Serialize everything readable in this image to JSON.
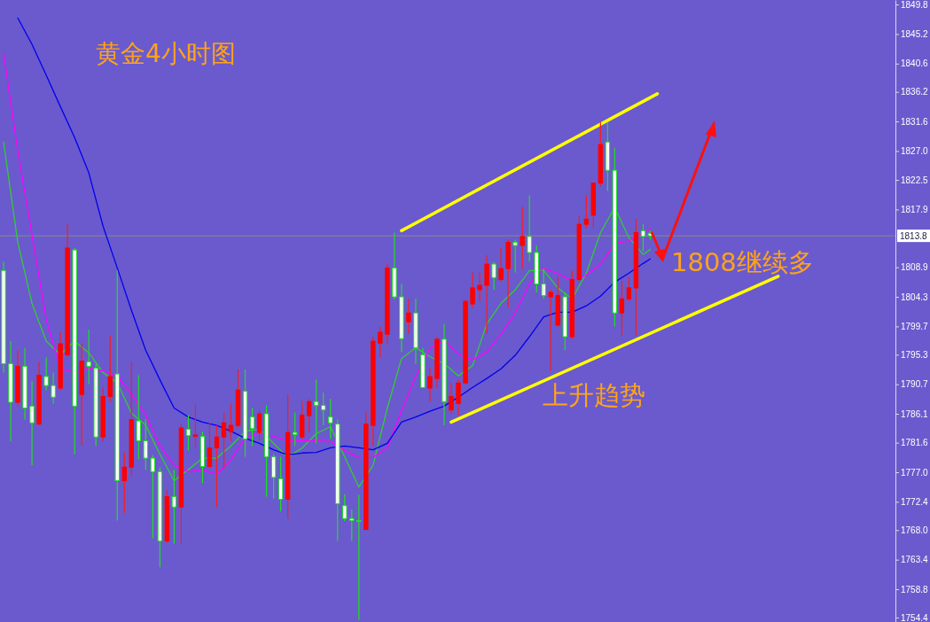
{
  "chart_data": {
    "type": "candlestick",
    "title": "黄金4小时图",
    "annotations": [
      "1808继续多",
      "上升趋势"
    ],
    "categories": [
      null,
      null,
      null,
      null,
      null,
      null,
      null,
      null,
      null,
      null,
      null,
      null,
      null,
      null,
      null,
      null,
      null,
      null,
      null,
      null,
      null,
      null,
      null,
      null,
      null,
      null,
      null,
      null,
      null,
      null,
      null,
      null,
      null,
      null,
      null,
      null,
      null,
      null,
      null,
      null,
      null,
      null,
      null,
      null,
      null,
      null,
      null,
      null,
      null,
      null,
      null,
      null,
      null,
      null,
      null,
      null,
      null,
      null,
      null,
      null,
      null,
      null,
      null,
      null,
      null,
      null,
      null,
      null,
      null,
      null,
      null,
      null,
      null,
      null,
      null,
      null,
      null,
      null,
      null,
      null,
      null,
      null,
      null,
      null,
      null,
      null,
      null,
      null,
      null,
      null,
      null,
      null,
      null,
      null,
      null,
      null,
      null,
      null,
      null,
      null,
      null,
      null,
      null,
      null,
      null,
      null,
      null,
      null,
      null,
      null,
      null,
      null,
      null,
      null,
      null,
      null,
      null,
      null,
      null,
      null,
      null,
      null,
      null,
      null,
      null,
      null
    ],
    "ohlc": [
      [
        1808.4,
        1809.8,
        1792.5,
        1793.9
      ],
      [
        1793.9,
        1797.4,
        1781.8,
        1787.9
      ],
      [
        1787.9,
        1796.0,
        1787.3,
        1793.5
      ],
      [
        1793.5,
        1796.3,
        1785.2,
        1787.0
      ],
      [
        1787.3,
        1791.2,
        1778.1,
        1784.7
      ],
      [
        1784.5,
        1794.2,
        1784.3,
        1792.1
      ],
      [
        1791.9,
        1794.9,
        1789.8,
        1790.5
      ],
      [
        1790.5,
        1792.5,
        1787.7,
        1788.7
      ],
      [
        1790.1,
        1798.8,
        1789.8,
        1797.0
      ],
      [
        1795.3,
        1815.6,
        1795.0,
        1811.9
      ],
      [
        1811.6,
        1811.9,
        1779.8,
        1787.3
      ],
      [
        1789.1,
        1797.0,
        1781.2,
        1794.3
      ],
      [
        1794.2,
        1799.2,
        1790.7,
        1793.5
      ],
      [
        1793.2,
        1793.9,
        1781.1,
        1782.5
      ],
      [
        1782.5,
        1790.2,
        1781.8,
        1788.8
      ],
      [
        1788.8,
        1798.3,
        1788.0,
        1791.9
      ],
      [
        1792.3,
        1808.4,
        1769.5,
        1775.7
      ],
      [
        1775.7,
        1780.1,
        1770.7,
        1777.8
      ],
      [
        1777.8,
        1794.2,
        1776.4,
        1785.2
      ],
      [
        1785.0,
        1792.1,
        1779.0,
        1781.9
      ],
      [
        1781.9,
        1785.2,
        1777.4,
        1779.2
      ],
      [
        1779.2,
        1779.7,
        1766.7,
        1777.1
      ],
      [
        1777.1,
        1777.8,
        1762.2,
        1766.3
      ],
      [
        1766.3,
        1774.2,
        1766.0,
        1773.2
      ],
      [
        1773.2,
        1777.4,
        1765.9,
        1771.6
      ],
      [
        1771.6,
        1784.5,
        1765.9,
        1783.9
      ],
      [
        1783.7,
        1785.9,
        1780.4,
        1782.7
      ],
      [
        1782.6,
        1787.6,
        1780.8,
        1782.8
      ],
      [
        1782.6,
        1783.3,
        1775.3,
        1777.9
      ],
      [
        1777.9,
        1784.7,
        1777.6,
        1780.8
      ],
      [
        1780.8,
        1784.3,
        1771.6,
        1782.5
      ],
      [
        1782.5,
        1786.3,
        1777.6,
        1784.7
      ],
      [
        1783.3,
        1787.7,
        1781.8,
        1784.3
      ],
      [
        1784.3,
        1793.0,
        1784.0,
        1789.8
      ],
      [
        1789.6,
        1793.0,
        1779.4,
        1782.2
      ],
      [
        1785.6,
        1787.0,
        1781.1,
        1783.8
      ],
      [
        1783.2,
        1786.6,
        1781.9,
        1786.1
      ],
      [
        1786.1,
        1787.4,
        1773.2,
        1779.4
      ],
      [
        1779.4,
        1779.8,
        1772.9,
        1776.2
      ],
      [
        1776.0,
        1779.4,
        1770.9,
        1772.8
      ],
      [
        1772.8,
        1789.1,
        1769.8,
        1783.2
      ],
      [
        1783.2,
        1786.3,
        1781.1,
        1782.9
      ],
      [
        1782.5,
        1788.1,
        1782.2,
        1785.9
      ],
      [
        1785.8,
        1788.4,
        1783.2,
        1788.0
      ],
      [
        1788.0,
        1791.4,
        1781.5,
        1787.4
      ],
      [
        1787.4,
        1789.4,
        1784.3,
        1786.7
      ],
      [
        1785.6,
        1788.4,
        1782.2,
        1784.7
      ],
      [
        1784.5,
        1785.2,
        1766.3,
        1772.1
      ],
      [
        1771.8,
        1773.6,
        1769.4,
        1769.8
      ],
      [
        1769.8,
        1771.2,
        1766.3,
        1769.5
      ],
      [
        1769.5,
        1773.5,
        1754.0,
        1769.4
      ],
      [
        1768.1,
        1786.3,
        1768.1,
        1784.5
      ],
      [
        1784.3,
        1798.1,
        1781.1,
        1797.4
      ],
      [
        1797.1,
        1799.7,
        1794.9,
        1798.8
      ],
      [
        1798.5,
        1809.5,
        1797.1,
        1808.8
      ],
      [
        1808.8,
        1814.3,
        1803.9,
        1804.3
      ],
      [
        1804.3,
        1806.3,
        1795.7,
        1797.8
      ],
      [
        1800.4,
        1804.0,
        1798.5,
        1801.8
      ],
      [
        1801.8,
        1804.0,
        1793.9,
        1796.4
      ],
      [
        1795.3,
        1796.3,
        1790.1,
        1790.2
      ],
      [
        1790.1,
        1793.2,
        1788.0,
        1791.9
      ],
      [
        1791.6,
        1798.1,
        1790.2,
        1797.7
      ],
      [
        1797.7,
        1800.1,
        1784.3,
        1788.0
      ],
      [
        1786.7,
        1790.9,
        1786.1,
        1788.8
      ],
      [
        1787.7,
        1791.4,
        1785.9,
        1790.9
      ],
      [
        1790.9,
        1803.9,
        1790.7,
        1803.6
      ],
      [
        1803.2,
        1808.1,
        1802.6,
        1805.7
      ],
      [
        1805.4,
        1808.1,
        1803.6,
        1806.1
      ],
      [
        1806.1,
        1810.8,
        1798.5,
        1809.4
      ],
      [
        1809.4,
        1809.8,
        1805.4,
        1807.3
      ],
      [
        1807.0,
        1811.9,
        1806.7,
        1808.7
      ],
      [
        1808.7,
        1813.2,
        1802.6,
        1812.8
      ],
      [
        1812.8,
        1813.2,
        1808.1,
        1812.3
      ],
      [
        1812.3,
        1818.3,
        1808.7,
        1813.7
      ],
      [
        1813.7,
        1820.1,
        1809.8,
        1811.2
      ],
      [
        1811.2,
        1812.3,
        1805.0,
        1806.3
      ],
      [
        1806.3,
        1808.7,
        1804.0,
        1804.5
      ],
      [
        1804.3,
        1805.4,
        1792.8,
        1805.0
      ],
      [
        1799.9,
        1807.4,
        1799.7,
        1804.5
      ],
      [
        1804.3,
        1805.0,
        1796.0,
        1798.1
      ],
      [
        1798.1,
        1808.4,
        1797.8,
        1807.0
      ],
      [
        1807.0,
        1817.0,
        1806.7,
        1815.6
      ],
      [
        1815.6,
        1820.1,
        1815.0,
        1816.4
      ],
      [
        1817.0,
        1822.0,
        1815.0,
        1822.0
      ],
      [
        1822.0,
        1831.5,
        1821.5,
        1828.0
      ],
      [
        1828.4,
        1831.5,
        1820.8,
        1824.0
      ],
      [
        1824.0,
        1827.5,
        1799.7,
        1801.8
      ],
      [
        1801.8,
        1806.8,
        1798.3,
        1804.0
      ],
      [
        1804.0,
        1807.4,
        1803.6,
        1805.7
      ],
      [
        1805.7,
        1816.4,
        1798.3,
        1814.3
      ],
      [
        1814.6,
        1815.6,
        1811.4,
        1813.7
      ],
      [
        1814.2,
        1814.6,
        1813.2,
        1813.8
      ],
      null,
      null,
      null,
      null,
      null,
      null,
      null,
      null,
      null,
      null,
      null,
      null,
      null,
      null,
      null,
      null,
      null,
      null,
      null,
      null,
      null,
      null,
      null,
      null,
      null,
      null,
      null,
      null,
      null,
      null,
      null,
      null,
      null,
      null
    ],
    "series": [
      {
        "type": "line",
        "color": "#33cc33",
        "values": [
          1828.4,
          null,
          1812.8,
          null,
          1803.3,
          null,
          1797.4,
          null,
          1795.3,
          null,
          1797.4,
          null,
          1795.6,
          null,
          1792.5,
          null,
          1790.9,
          null,
          1786.2,
          null,
          1784.3,
          null,
          1779.8,
          null,
          1775.7,
          null,
          1777.4,
          null,
          1779.2,
          null,
          1779.2,
          null,
          1781.1,
          null,
          1783.4,
          null,
          1783.7,
          null,
          1781.5,
          null,
          1779.3,
          null,
          1780.8,
          null,
          1783.0,
          null,
          1784.1,
          null,
          1779.4,
          null,
          1774.7,
          null,
          1778.1,
          null,
          1787.0,
          null,
          1794.7,
          null,
          1796.4,
          null,
          1795.0,
          null,
          1793.9,
          null,
          1792.0,
          null,
          1793.6,
          null,
          1800.1,
          null,
          1803.3,
          null,
          1805.4,
          null,
          1808.4,
          null,
          1808.4,
          null,
          1805.7,
          null,
          1804.0,
          null,
          1808.0,
          null,
          1814.3,
          null,
          1818.2,
          null,
          1813.5,
          null,
          1810.9,
          1811.7,
          null,
          null,
          null,
          null,
          null,
          null,
          null,
          null,
          null,
          null,
          null,
          null,
          null,
          null,
          null,
          null,
          null,
          null,
          null,
          null,
          null,
          null,
          null,
          null,
          null,
          null,
          null,
          null,
          null,
          null,
          null,
          null,
          null,
          null
        ]
      },
      {
        "type": "line",
        "color": "#ff00ff",
        "values": [
          1842.2,
          null,
          1827.0,
          null,
          1813.9,
          null,
          1800.8,
          null,
          1793.2,
          null,
          1792.5,
          null,
          1793.2,
          null,
          1792.8,
          null,
          1792.0,
          null,
          1789.2,
          null,
          1785.9,
          null,
          1781.1,
          null,
          1778.1,
          null,
          1777.1,
          null,
          1777.4,
          null,
          1776.7,
          null,
          1779.0,
          null,
          1782.3,
          null,
          1783.2,
          null,
          1782.6,
          null,
          1781.9,
          null,
          1781.9,
          null,
          1781.9,
          null,
          1781.8,
          null,
          1780.4,
          null,
          1779.3,
          null,
          1779.3,
          null,
          1780.8,
          null,
          1786.6,
          null,
          1791.9,
          null,
          1796.3,
          null,
          1797.6,
          null,
          1795.4,
          null,
          1794.5,
          null,
          1795.7,
          null,
          1798.5,
          null,
          1801.8,
          null,
          1806.3,
          null,
          1808.8,
          null,
          1807.9,
          null,
          1806.8,
          null,
          1807.7,
          null,
          1809.4,
          null,
          1812.6,
          null,
          1813.0,
          null,
          1814.2,
          1814.9,
          null,
          null,
          null,
          null,
          null,
          null,
          null,
          null,
          null,
          null,
          null,
          null,
          null,
          null,
          null,
          null,
          null,
          null,
          null,
          null,
          null,
          null,
          null,
          null,
          null,
          null,
          null,
          null,
          null,
          null,
          null,
          null,
          null,
          null
        ]
      },
      {
        "type": "line",
        "color": "#0000ee",
        "values": [
          null,
          null,
          1847.7,
          null,
          1843.6,
          null,
          1838.8,
          null,
          1833.9,
          null,
          1829.1,
          null,
          1823.6,
          null,
          1815.3,
          null,
          1808.8,
          null,
          1802.2,
          null,
          1796.0,
          null,
          1791.4,
          null,
          1787.0,
          null,
          1785.6,
          null,
          1784.8,
          null,
          1784.3,
          null,
          1783.4,
          null,
          1782.3,
          null,
          1781.5,
          null,
          1780.5,
          null,
          1779.7,
          null,
          1780.0,
          null,
          1780.1,
          null,
          1780.8,
          null,
          1781.1,
          null,
          1780.8,
          null,
          1780.5,
          null,
          1781.5,
          null,
          1784.8,
          null,
          1785.6,
          null,
          1786.5,
          null,
          1787.3,
          null,
          1788.7,
          null,
          1790.2,
          null,
          1791.6,
          null,
          1793.1,
          null,
          1795.2,
          null,
          1798.1,
          null,
          1801.2,
          null,
          1801.9,
          null,
          1801.9,
          null,
          1802.9,
          null,
          1804.4,
          null,
          1806.6,
          null,
          1808.0,
          null,
          1809.5,
          1810.2,
          null,
          null,
          null,
          null,
          null,
          null,
          null,
          null,
          null,
          null,
          null,
          null,
          null,
          null,
          null,
          null,
          null,
          null,
          null,
          null,
          null,
          null,
          null,
          null,
          null,
          null,
          null,
          null,
          null,
          null,
          null,
          null,
          null,
          null
        ]
      },
      {
        "type": "line",
        "color": "#ffff00",
        "values": [
          null,
          null,
          null,
          null,
          null,
          null,
          null,
          null,
          null,
          null,
          null,
          null,
          null,
          null,
          null,
          null,
          null,
          null,
          null,
          null,
          null,
          null,
          null,
          null,
          null,
          null,
          null,
          null,
          null,
          null,
          null,
          null,
          null,
          null,
          null,
          null,
          null,
          null,
          null,
          null,
          null,
          null,
          null,
          null,
          null,
          null,
          null,
          null,
          null,
          null,
          null,
          null,
          null,
          null,
          null,
          null,
          1814.6,
          null,
          null,
          null,
          null,
          null,
          null,
          null,
          null,
          null,
          null,
          null,
          null,
          null,
          null,
          null,
          null,
          null,
          null,
          null,
          null,
          null,
          null,
          null,
          null,
          null,
          null,
          null,
          null,
          null,
          null,
          null,
          null,
          null,
          null,
          null,
          1835.9,
          null,
          null,
          null,
          null,
          null,
          null,
          null,
          null,
          null,
          null,
          null,
          null,
          null,
          null,
          null,
          null,
          null,
          null,
          null,
          null,
          null,
          null,
          null,
          null,
          null,
          null,
          null,
          null,
          null,
          null,
          null,
          null,
          null
        ]
      },
      {
        "type": "line",
        "color": "#ffff00",
        "values": [
          null,
          null,
          null,
          null,
          null,
          null,
          null,
          null,
          null,
          null,
          null,
          null,
          null,
          null,
          null,
          null,
          null,
          null,
          null,
          null,
          null,
          null,
          null,
          null,
          null,
          null,
          null,
          null,
          null,
          null,
          null,
          null,
          null,
          null,
          null,
          null,
          null,
          null,
          null,
          null,
          null,
          null,
          null,
          null,
          null,
          null,
          null,
          null,
          null,
          null,
          null,
          null,
          null,
          null,
          null,
          null,
          null,
          null,
          null,
          null,
          null,
          null,
          null,
          1784.8,
          null,
          null,
          null,
          null,
          null,
          null,
          null,
          null,
          null,
          null,
          null,
          null,
          null,
          null,
          null,
          null,
          null,
          null,
          null,
          null,
          null,
          null,
          null,
          null,
          null,
          null,
          null,
          null,
          null,
          null,
          null,
          null,
          null,
          null,
          null,
          null,
          null,
          null,
          null,
          null,
          null,
          null,
          null,
          null,
          null,
          1807.5,
          null,
          null,
          null,
          null,
          null,
          null,
          null,
          null,
          null,
          null,
          null,
          null,
          null,
          null,
          null,
          null
        ]
      }
    ],
    "ref_lines": [
      {
        "axis": "y",
        "value": 1813.8,
        "label": "1813.8",
        "color": "#8a8a8a"
      }
    ],
    "ylim": [
      1753.7,
      1850.5
    ],
    "yticks": [
      1849.8,
      1845.2,
      1840.6,
      1836.2,
      1831.6,
      {
        "value": 1827,
        "label": "1827.0"
      },
      1822.5,
      1817.9,
      1808.9,
      1804.3,
      1799.7,
      1795.3,
      1790.7,
      1786.1,
      1781.6,
      {
        "value": 1777,
        "label": "1777.0"
      },
      1772.4,
      {
        "value": 1768,
        "label": "1768.0"
      },
      1763.4,
      1758.8,
      1754.4
    ],
    "tick_labels": "y"
  }
}
